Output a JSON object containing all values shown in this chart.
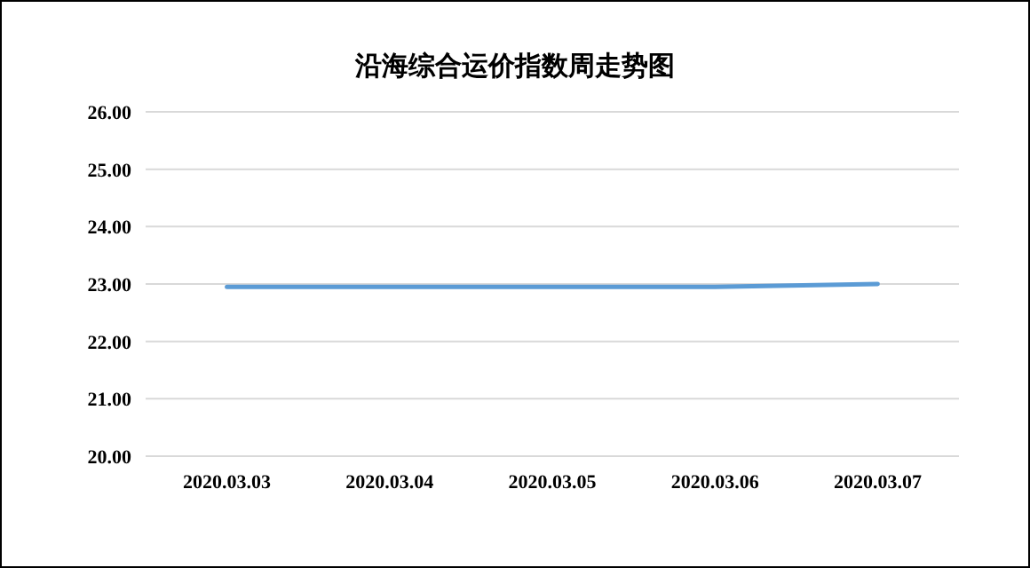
{
  "chart_data": {
    "type": "line",
    "title": "沿海综合运价指数周走势图",
    "categories": [
      "2020.03.03",
      "2020.03.04",
      "2020.03.05",
      "2020.03.06",
      "2020.03.07"
    ],
    "series": [
      {
        "color": "#5b9bd5",
        "values": [
          22.95,
          22.95,
          22.95,
          22.95,
          23.0
        ]
      }
    ],
    "ylim": [
      20,
      26
    ],
    "yticks": [
      {
        "value": 20,
        "label": "20.00"
      },
      {
        "value": 21,
        "label": "21.00"
      },
      {
        "value": 22,
        "label": "22.00"
      },
      {
        "value": 23,
        "label": "23.00"
      },
      {
        "value": 24,
        "label": "24.00"
      },
      {
        "value": 25,
        "label": "25.00"
      },
      {
        "value": 26,
        "label": "26.00"
      }
    ],
    "grid": "y",
    "marker": "none",
    "line_style": "solid"
  }
}
